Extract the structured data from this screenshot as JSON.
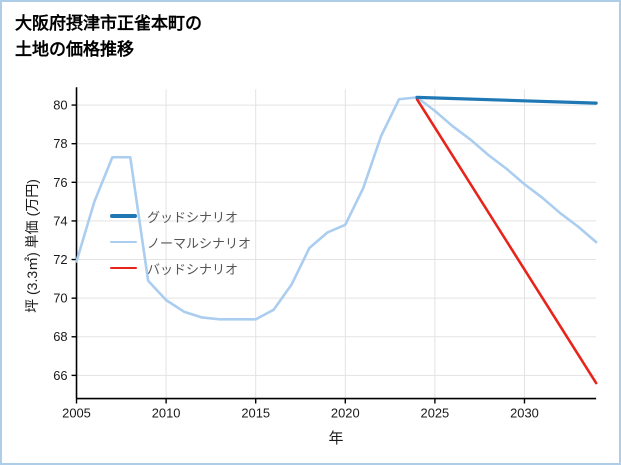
{
  "chart_data": {
    "type": "line",
    "title": "大阪府摂津市正雀本町の土地の価格推移",
    "title_lines": [
      "大阪府摂津市正雀本町の",
      "土地の価格推移"
    ],
    "xlabel": "年",
    "ylabel": "坪 (3.3㎡) 単価 (万円)",
    "xlim": [
      2005,
      2034
    ],
    "ylim": [
      64.8,
      80.82
    ],
    "x_ticks": [
      2005,
      2010,
      2015,
      2020,
      2025,
      2030
    ],
    "y_ticks": [
      66,
      68,
      70,
      72,
      74,
      76,
      78,
      80
    ],
    "grid": true,
    "legend_position": "middle-left",
    "axis_color": "#000000",
    "grid_color": "#e3e3e3",
    "series": [
      {
        "name": "グッドシナリオ",
        "slug": "good-scenario",
        "color": "#1f77b4",
        "width": 3.2,
        "x": [
          2024,
          2034
        ],
        "y": [
          80.4,
          80.1
        ]
      },
      {
        "name": "ノーマルシナリオ",
        "slug": "normal-scenario",
        "color": "#aacdf0",
        "width": 2.6,
        "x": [
          2005,
          2006,
          2007,
          2008,
          2009,
          2010,
          2011,
          2012,
          2013,
          2014,
          2015,
          2016,
          2017,
          2018,
          2019,
          2020,
          2021,
          2022,
          2023,
          2024,
          2025,
          2026,
          2027,
          2028,
          2029,
          2030,
          2031,
          2032,
          2033,
          2034
        ],
        "y": [
          71.9,
          75.0,
          77.3,
          77.3,
          70.9,
          69.9,
          69.3,
          69.0,
          68.9,
          68.9,
          68.9,
          69.4,
          70.7,
          72.6,
          73.4,
          73.8,
          75.7,
          78.4,
          80.3,
          80.4,
          79.7,
          78.9,
          78.2,
          77.4,
          76.7,
          75.9,
          75.2,
          74.4,
          73.7,
          72.9
        ]
      },
      {
        "name": "バッドシナリオ",
        "slug": "bad-scenario",
        "color": "#e8231a",
        "width": 2.6,
        "x": [
          2024,
          2034
        ],
        "y": [
          80.3,
          65.6
        ]
      }
    ]
  }
}
